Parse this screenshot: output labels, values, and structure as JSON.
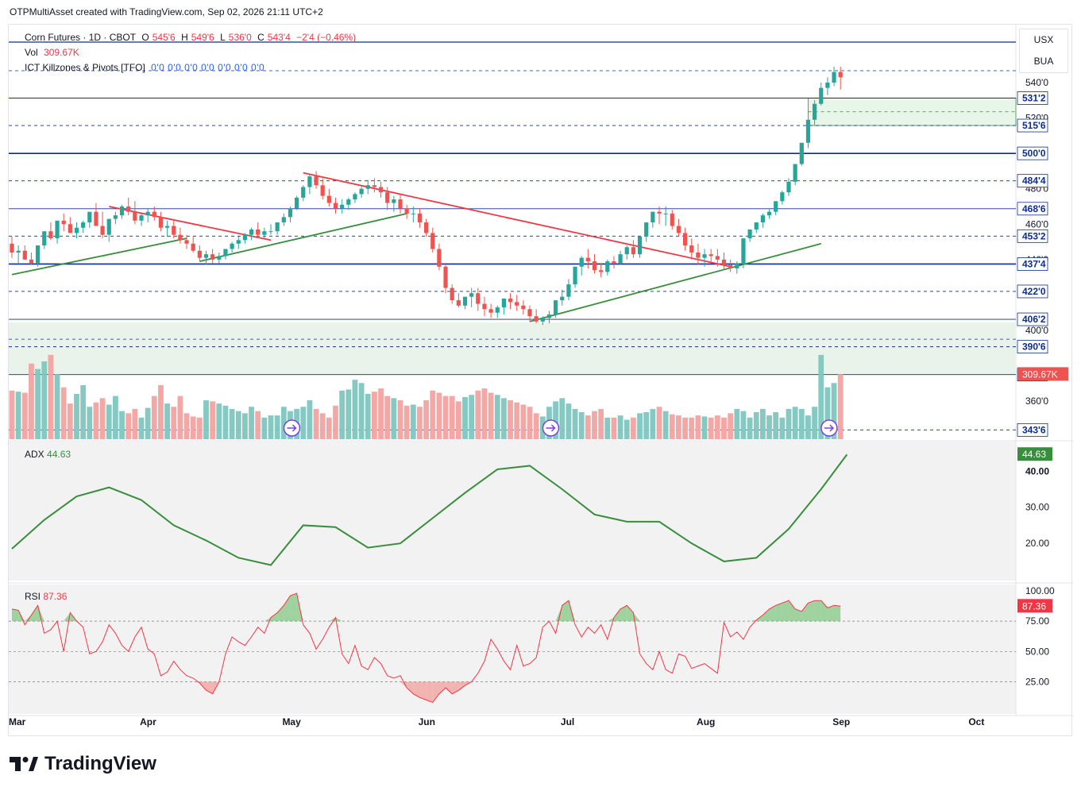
{
  "created": "OTPMultiAsset created with TradingView.com, Sep 02, 2026 21:11 UTC+2",
  "legend": {
    "symbol": "Corn Futures · 1D · CBOT",
    "o_label": "O",
    "o_value": "545'6",
    "h_label": "H",
    "h_value": "549'6",
    "l_label": "L",
    "l_value": "536'0",
    "c_label": "C",
    "c_value": "543'4",
    "change": "−2'4 (−0.46%)",
    "vol_label": "Vol",
    "vol_value": "309.67K",
    "indicator_label": "ICT Killzones & Pivots [TFO]",
    "indicator_values": "0'0  0'0  0'0  0'0  0'0  0'0  0'0"
  },
  "unit_box": {
    "line1": "USX",
    "line2": "BUA"
  },
  "adx": {
    "label": "ADX",
    "value": "44.63"
  },
  "rsi": {
    "label": "RSI",
    "value": "87.36"
  },
  "logo_text": "TradingView",
  "colors": {
    "up": "#26a69a",
    "down": "#ef5350",
    "level": "#0d2d8c",
    "trend_red": "#f23645",
    "trend_green": "#388e3c",
    "adx_line": "#388e3c",
    "rsi_line": "#f23645",
    "zone": "#e8f5e9"
  },
  "chart_data": [
    {
      "type": "candlestick",
      "title": "Corn Futures · 1D · CBOT",
      "x_ticks": [
        "Mar",
        "Apr",
        "May",
        "Jun",
        "Jul",
        "Aug",
        "Sep",
        "Oct"
      ],
      "y_ticks": [
        360,
        400,
        440,
        460,
        480,
        520,
        540
      ],
      "y_tick_labels": [
        "360'0",
        "400'0",
        "440'0",
        "460'0",
        "480'0",
        "520'0",
        "540'0"
      ],
      "price_levels": [
        "531'2",
        "515'6",
        "500'0",
        "484'4",
        "468'6",
        "453'2",
        "437'4",
        "422'0",
        "406'2",
        "390'6",
        "375'0",
        "343'6"
      ],
      "price_level_values": [
        531.25,
        515.75,
        500.0,
        484.5,
        468.75,
        453.25,
        437.5,
        422.0,
        406.25,
        390.75,
        375.0,
        343.75
      ],
      "last_volume_label": "309.67K",
      "ohlc": {
        "open": [
          449,
          444,
          445,
          440,
          438,
          448,
          456,
          452,
          462,
          460,
          455,
          458,
          461,
          467,
          459,
          454,
          463,
          465,
          470,
          467,
          462,
          465,
          467,
          464,
          458,
          459,
          454,
          451,
          449,
          445,
          441,
          443,
          440,
          442,
          446,
          449,
          451,
          454,
          457,
          454,
          456,
          456,
          461,
          464,
          469,
          475,
          481,
          487,
          482,
          476,
          472,
          469,
          471,
          474,
          477,
          480,
          482,
          481,
          478,
          472,
          474,
          469,
          466,
          466,
          461,
          455,
          446,
          436,
          424,
          417,
          414,
          419,
          421,
          415,
          412,
          410,
          413,
          418,
          416,
          414,
          412,
          408,
          405,
          407,
          409,
          417,
          419,
          426,
          436,
          441,
          439,
          434,
          433,
          439,
          438,
          443,
          447,
          443,
          453,
          461,
          467,
          466,
          466,
          459,
          455,
          448,
          444,
          441,
          443,
          442,
          440,
          437,
          435,
          438,
          452,
          457,
          461,
          465,
          467,
          473,
          478,
          484,
          494,
          506,
          519,
          528,
          537,
          540,
          546
        ],
        "high": [
          453,
          448,
          448,
          444,
          442,
          455,
          461,
          458,
          466,
          464,
          461,
          462,
          466,
          472,
          467,
          457,
          467,
          471,
          475,
          473,
          466,
          469,
          470,
          467,
          462,
          462,
          458,
          454,
          453,
          448,
          445,
          446,
          444,
          446,
          450,
          453,
          455,
          458,
          461,
          458,
          460,
          461,
          466,
          470,
          476,
          482,
          488,
          490,
          486,
          480,
          475,
          474,
          475,
          478,
          482,
          485,
          486,
          484,
          481,
          476,
          477,
          471,
          470,
          469,
          463,
          458,
          449,
          438,
          426,
          421,
          418,
          424,
          424,
          419,
          415,
          414,
          418,
          421,
          420,
          417,
          414,
          412,
          408,
          411,
          414,
          423,
          429,
          434,
          442,
          446,
          443,
          438,
          440,
          442,
          445,
          448,
          451,
          450,
          459,
          467,
          470,
          470,
          468,
          463,
          458,
          452,
          449,
          446,
          446,
          446,
          444,
          440,
          439,
          445,
          456,
          460,
          466,
          469,
          473,
          479,
          486,
          493,
          505,
          515,
          530,
          540,
          543,
          549,
          549
        ],
        "low": [
          441,
          438,
          440,
          437,
          436,
          446,
          451,
          449,
          456,
          455,
          452,
          455,
          458,
          461,
          452,
          450,
          460,
          463,
          465,
          460,
          459,
          461,
          462,
          456,
          453,
          452,
          449,
          446,
          444,
          439,
          437,
          438,
          438,
          440,
          444,
          446,
          449,
          451,
          452,
          452,
          454,
          454,
          459,
          461,
          468,
          473,
          477,
          480,
          474,
          470,
          466,
          466,
          468,
          472,
          475,
          477,
          478,
          475,
          468,
          467,
          466,
          463,
          461,
          458,
          453,
          444,
          434,
          421,
          415,
          413,
          412,
          413,
          411,
          408,
          407,
          407,
          409,
          412,
          411,
          409,
          405,
          404,
          403,
          404,
          407,
          414,
          417,
          424,
          431,
          435,
          432,
          430,
          431,
          435,
          437,
          440,
          441,
          441,
          450,
          458,
          460,
          459,
          457,
          453,
          445,
          440,
          437,
          436,
          438,
          436,
          434,
          433,
          432,
          435,
          450,
          455,
          458,
          463,
          465,
          471,
          476,
          482,
          493,
          503,
          516,
          527,
          533,
          538,
          536
        ],
        "close": [
          444,
          445,
          440,
          438,
          448,
          456,
          452,
          462,
          460,
          455,
          458,
          461,
          467,
          459,
          454,
          463,
          465,
          470,
          467,
          462,
          465,
          467,
          464,
          458,
          459,
          454,
          451,
          449,
          445,
          441,
          443,
          440,
          442,
          446,
          449,
          451,
          454,
          457,
          454,
          456,
          456,
          461,
          464,
          469,
          475,
          481,
          487,
          482,
          476,
          472,
          469,
          471,
          474,
          477,
          480,
          482,
          481,
          478,
          472,
          474,
          469,
          466,
          466,
          461,
          455,
          446,
          436,
          424,
          417,
          414,
          419,
          421,
          415,
          412,
          410,
          413,
          418,
          416,
          414,
          412,
          408,
          405,
          407,
          409,
          417,
          419,
          426,
          436,
          441,
          439,
          434,
          433,
          439,
          438,
          443,
          447,
          443,
          453,
          461,
          467,
          466,
          466,
          459,
          455,
          448,
          444,
          441,
          443,
          442,
          440,
          437,
          435,
          438,
          452,
          457,
          461,
          465,
          467,
          473,
          478,
          484,
          494,
          506,
          519,
          528,
          537,
          540,
          546,
          543
        ]
      },
      "volume_rel": [
        0.45,
        0.44,
        0.43,
        0.7,
        0.65,
        0.72,
        0.78,
        0.6,
        0.48,
        0.33,
        0.42,
        0.5,
        0.3,
        0.34,
        0.38,
        0.32,
        0.4,
        0.26,
        0.24,
        0.28,
        0.2,
        0.29,
        0.4,
        0.5,
        0.33,
        0.3,
        0.4,
        0.24,
        0.21,
        0.2,
        0.36,
        0.35,
        0.33,
        0.31,
        0.28,
        0.26,
        0.24,
        0.3,
        0.26,
        0.2,
        0.22,
        0.22,
        0.3,
        0.26,
        0.28,
        0.3,
        0.36,
        0.28,
        0.24,
        0.2,
        0.31,
        0.45,
        0.46,
        0.55,
        0.52,
        0.42,
        0.44,
        0.47,
        0.4,
        0.38,
        0.36,
        0.31,
        0.32,
        0.3,
        0.36,
        0.45,
        0.43,
        0.4,
        0.4,
        0.35,
        0.39,
        0.41,
        0.45,
        0.47,
        0.43,
        0.41,
        0.38,
        0.36,
        0.34,
        0.32,
        0.3,
        0.24,
        0.21,
        0.3,
        0.35,
        0.38,
        0.33,
        0.28,
        0.25,
        0.22,
        0.26,
        0.28,
        0.2,
        0.2,
        0.22,
        0.18,
        0.2,
        0.24,
        0.25,
        0.28,
        0.3,
        0.26,
        0.23,
        0.22,
        0.2,
        0.2,
        0.22,
        0.21,
        0.2,
        0.22,
        0.2,
        0.24,
        0.28,
        0.26,
        0.2,
        0.25,
        0.28,
        0.22,
        0.25,
        0.2,
        0.28,
        0.3,
        0.28,
        0.22,
        0.3,
        0.78,
        0.48,
        0.52,
        0.6
      ]
    },
    {
      "type": "line",
      "title": "ADX",
      "y_ticks": [
        20,
        30,
        40
      ],
      "y_tick_labels": [
        "20.00",
        "30.00",
        "40.00"
      ],
      "last_value": 44.63,
      "x": [
        0,
        5,
        10,
        15,
        20,
        25,
        30,
        35,
        40,
        45,
        50,
        55,
        60,
        65,
        70,
        75,
        80,
        85,
        90,
        95,
        100,
        105,
        110,
        115,
        120,
        125,
        129
      ],
      "values": [
        18.5,
        26.5,
        33.0,
        35.5,
        32.0,
        25.0,
        20.8,
        16.0,
        14.0,
        25.0,
        24.5,
        18.8,
        20.0,
        27.0,
        34.0,
        40.5,
        41.5,
        35.0,
        28.0,
        26.0,
        26.0,
        20.0,
        15.0,
        16.0,
        24.0,
        35.0,
        44.63
      ]
    },
    {
      "type": "line",
      "title": "RSI",
      "y_ticks": [
        25,
        50,
        75,
        100
      ],
      "y_tick_labels": [
        "25.00",
        "50.00",
        "75.00",
        "100.00"
      ],
      "last_value": 87.36,
      "values": [
        85,
        84,
        72,
        80,
        88,
        65,
        68,
        75,
        50,
        82,
        75,
        70,
        48,
        50,
        58,
        72,
        65,
        55,
        50,
        62,
        70,
        52,
        48,
        30,
        33,
        42,
        35,
        30,
        28,
        24,
        18,
        15,
        25,
        48,
        62,
        58,
        55,
        62,
        70,
        65,
        78,
        82,
        88,
        96,
        98,
        72,
        65,
        52,
        60,
        70,
        78,
        48,
        40,
        55,
        38,
        35,
        45,
        40,
        30,
        28,
        30,
        20,
        15,
        12,
        10,
        8,
        15,
        20,
        15,
        18,
        22,
        25,
        32,
        42,
        60,
        52,
        42,
        35,
        55,
        38,
        40,
        45,
        70,
        75,
        65,
        88,
        92,
        72,
        62,
        70,
        65,
        72,
        60,
        78,
        85,
        88,
        82,
        48,
        40,
        35,
        50,
        35,
        32,
        48,
        46,
        36,
        38,
        40,
        36,
        32,
        74,
        62,
        66,
        60,
        70,
        76,
        80,
        85,
        88,
        90,
        92,
        85,
        83,
        90,
        92,
        92,
        86,
        88,
        87.36
      ]
    }
  ]
}
